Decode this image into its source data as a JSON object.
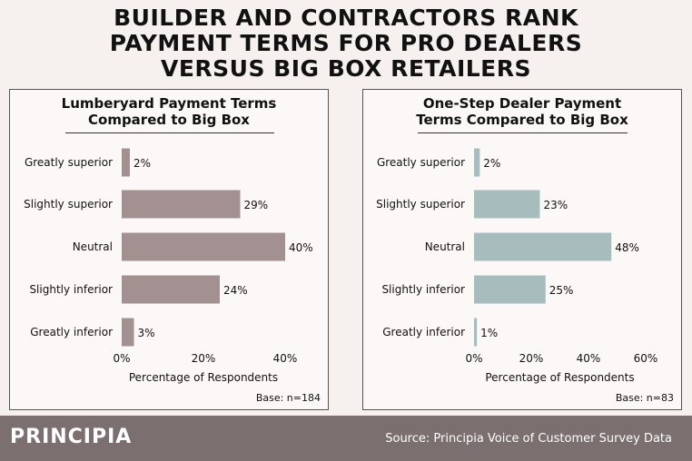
{
  "title_lines": [
    "BUILDER AND CONTRACTORS RANK",
    "PAYMENT TERMS FOR PRO DEALERS",
    "VERSUS BIG BOX RETAILERS"
  ],
  "footer": {
    "brand": "PRINCIPIA",
    "source": "Source: Principia Voice of Customer Survey Data"
  },
  "colors": {
    "left_bar": "#a39091",
    "right_bar": "#a7bcbc",
    "footer_bg": "#7c6f70"
  },
  "chart_data": [
    {
      "type": "bar",
      "orientation": "horizontal",
      "title_lines": [
        "Lumberyard Payment Terms",
        "Compared to Big Box"
      ],
      "categories": [
        "Greatly superior",
        "Slightly superior",
        "Neutral",
        "Slightly inferior",
        "Greatly inferior"
      ],
      "values": [
        2,
        29,
        40,
        24,
        3
      ],
      "value_labels": [
        "2%",
        "29%",
        "40%",
        "24%",
        "3%"
      ],
      "xlabel": "Percentage of Respondents",
      "xlim": [
        0,
        40
      ],
      "xticks": [
        0,
        20,
        40
      ],
      "xtick_labels": [
        "0%",
        "20%",
        "40%"
      ],
      "note": "Base: n=184"
    },
    {
      "type": "bar",
      "orientation": "horizontal",
      "title_lines": [
        "One-Step Dealer Payment",
        "Terms Compared to Big Box"
      ],
      "categories": [
        "Greatly superior",
        "Slightly superior",
        "Neutral",
        "Slightly inferior",
        "Greatly inferior"
      ],
      "values": [
        2,
        23,
        48,
        25,
        1
      ],
      "value_labels": [
        "2%",
        "23%",
        "48%",
        "25%",
        "1%"
      ],
      "xlabel": "Percentage of Respondents",
      "xlim": [
        0,
        60
      ],
      "xticks": [
        0,
        20,
        40,
        60
      ],
      "xtick_labels": [
        "0%",
        "20%",
        "40%",
        "60%"
      ],
      "note": "Base: n=83"
    }
  ]
}
